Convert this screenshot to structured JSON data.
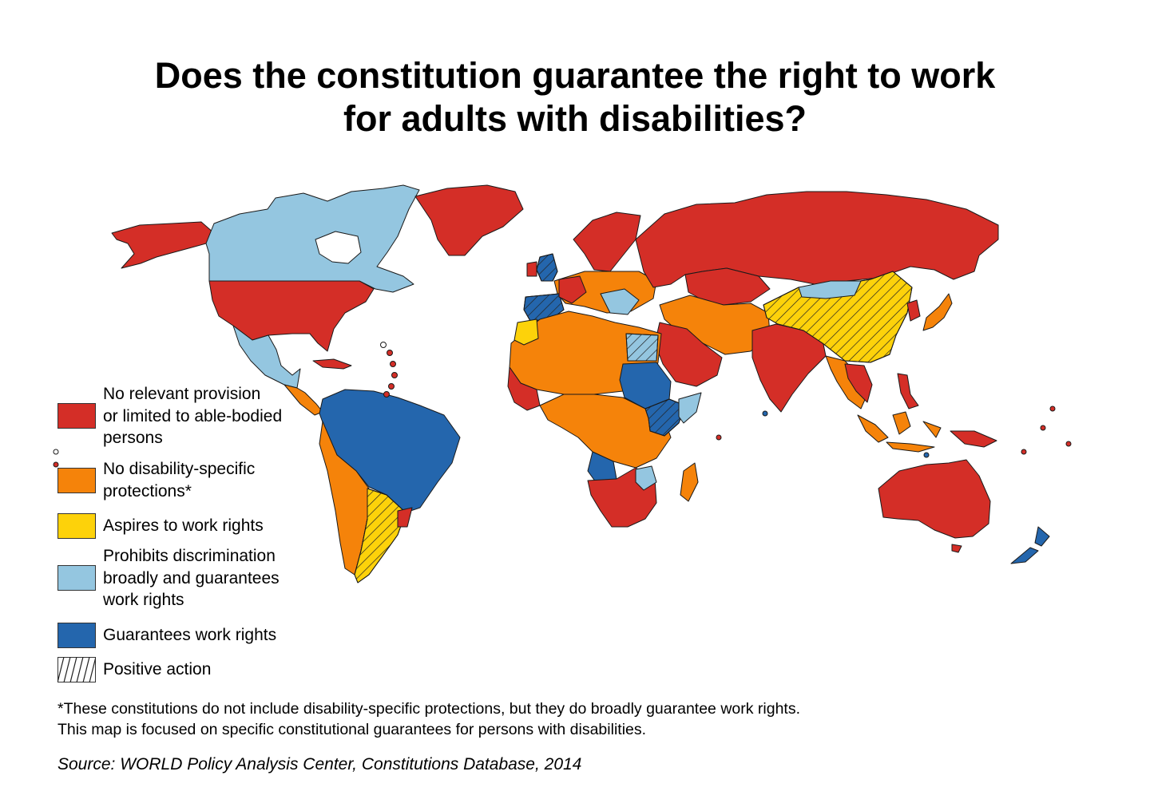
{
  "title": {
    "line1": "Does the constitution guarantee the right to work",
    "line2": "for adults with disabilities?"
  },
  "legend": [
    {
      "id": "none",
      "lines": [
        "No relevant provision",
        "or limited to able-bodied",
        "persons"
      ],
      "color": "#d42e27",
      "pattern": false
    },
    {
      "id": "no-specific",
      "lines": [
        "No disability-specific",
        "protections*"
      ],
      "color": "#f5830a",
      "pattern": false
    },
    {
      "id": "aspires",
      "lines": [
        "Aspires to work rights"
      ],
      "color": "#fdd20a",
      "pattern": false
    },
    {
      "id": "broad",
      "lines": [
        "Prohibits discrimination",
        "broadly and guarantees",
        "work rights"
      ],
      "color": "#94c6e0",
      "pattern": false
    },
    {
      "id": "guarantees",
      "lines": [
        "Guarantees work rights"
      ],
      "color": "#2466ad",
      "pattern": false
    },
    {
      "id": "positive",
      "lines": [
        "Positive action"
      ],
      "color": "#ffffff",
      "pattern": true
    }
  ],
  "notes": {
    "line1": "*These constitutions do not include disability-specific protections, but they do broadly guarantee work rights.",
    "line2": "This map is focused on specific constitutional guarantees for persons with disabilities."
  },
  "source": "Source: WORLD Policy Analysis Center, Constitutions Database, 2014",
  "colors": {
    "none": "#d42e27",
    "no_specific": "#f5830a",
    "aspires": "#fdd20a",
    "broad": "#94c6e0",
    "guarantees": "#2466ad",
    "border": "#1a1a1a"
  }
}
